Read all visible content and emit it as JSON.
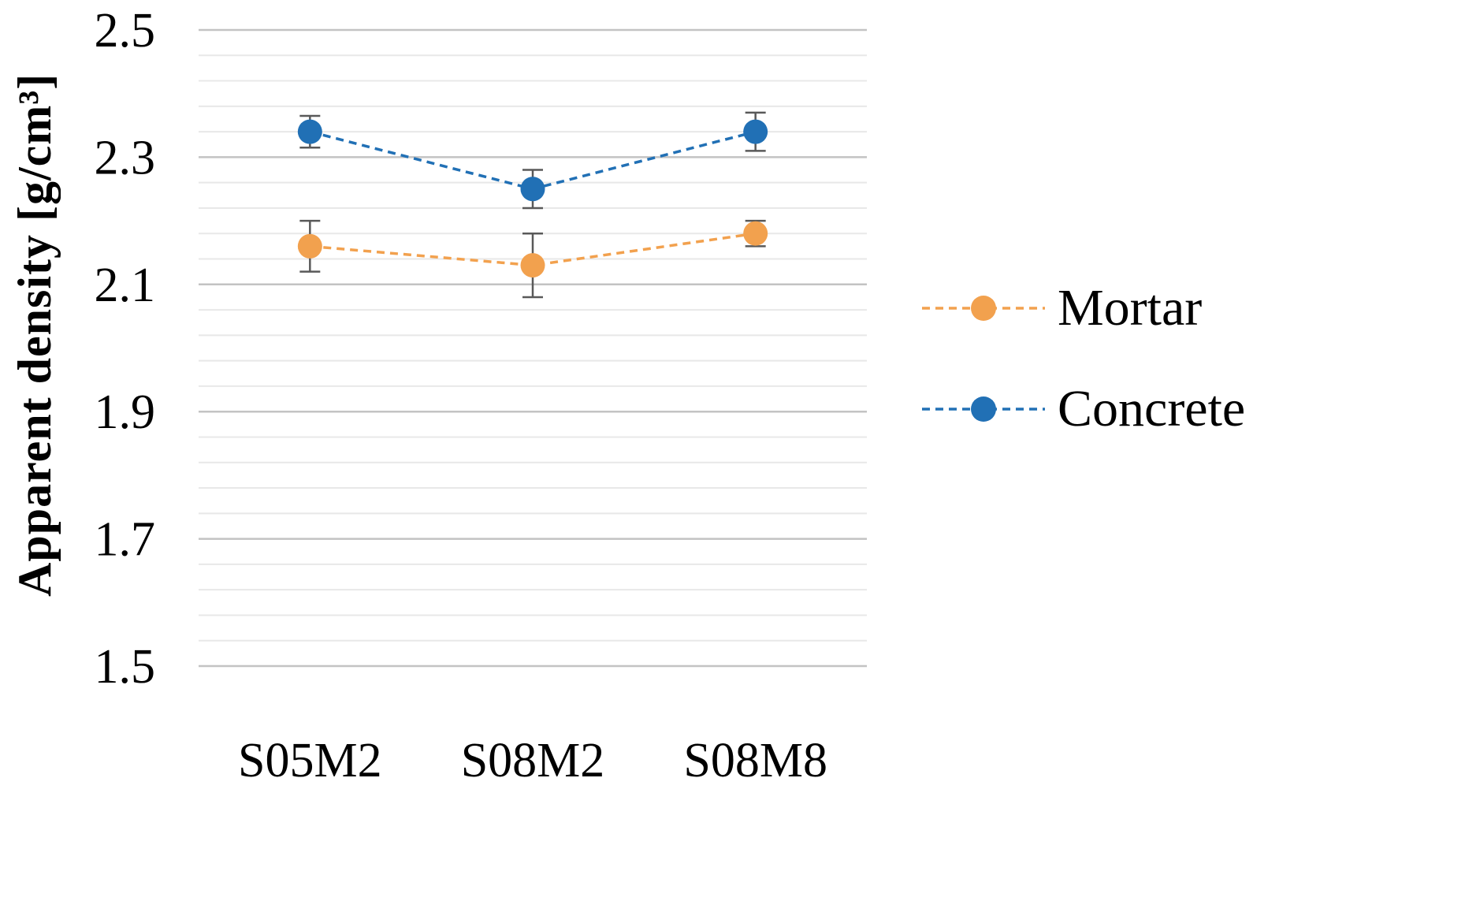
{
  "chart_data": {
    "type": "line",
    "title": "",
    "ylabel": "Apparent density [g/cm³]",
    "xlabel": "",
    "ylim": [
      1.5,
      2.5
    ],
    "yticks": [
      1.5,
      1.7,
      1.9,
      2.1,
      2.3,
      2.5
    ],
    "y_tick_decimals": 1,
    "y_minor_step": 0.04,
    "grid": true,
    "legend_position": "right",
    "categories": [
      "S05M2",
      "S08M2",
      "S08M8"
    ],
    "series": [
      {
        "name": "Mortar",
        "color": "#F2A14E",
        "line_style": "dashed",
        "marker": "circle",
        "values": [
          2.16,
          2.13,
          2.18
        ],
        "errors": [
          0.04,
          0.05,
          0.02
        ]
      },
      {
        "name": "Concrete",
        "color": "#2170B5",
        "line_style": "dashed",
        "marker": "circle",
        "values": [
          2.34,
          2.25,
          2.34
        ],
        "errors": [
          0.025,
          0.03,
          0.03
        ]
      }
    ],
    "error_bar_color": "#595959",
    "major_grid_color": "#c3c3c3",
    "minor_grid_color": "#e8e8e8",
    "axis_text_color": "#000000"
  }
}
